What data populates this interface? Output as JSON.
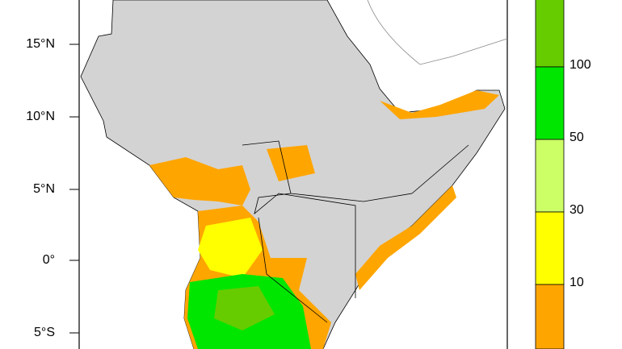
{
  "map": {
    "lat_labels": [
      "15°N",
      "10°N",
      "5°N",
      "0°",
      "5°S"
    ]
  },
  "colorbar": {
    "labels": [
      "100",
      "50",
      "30",
      "10"
    ],
    "colors": [
      "#66cc00",
      "#00e600",
      "#ccff66",
      "#ffff00",
      "#ffa500"
    ]
  }
}
